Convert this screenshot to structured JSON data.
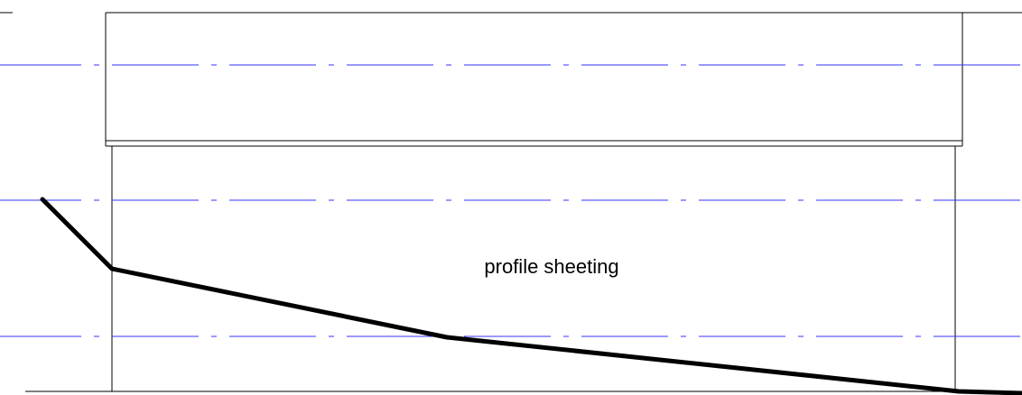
{
  "drawing": {
    "label": "profile sheeting",
    "colors": {
      "outline": "#000000",
      "centerline": "#3333ff",
      "profile_line": "#000000",
      "background": "#ffffff"
    },
    "line_styles": {
      "centerline": "dash-dot",
      "outline": "thin-solid",
      "profile": "heavy-solid"
    }
  }
}
